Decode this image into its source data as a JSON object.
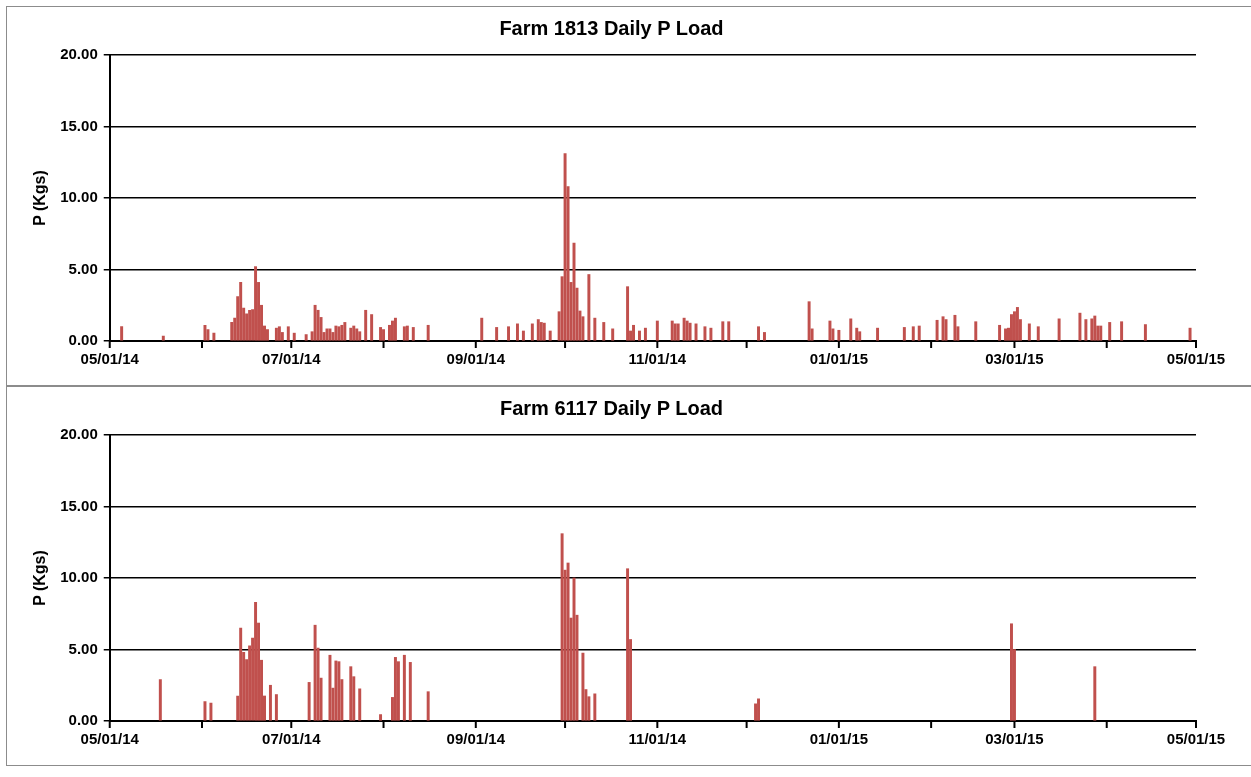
{
  "chart_data": [
    {
      "type": "bar",
      "title": "Farm 1813 Daily P Load",
      "ylabel": "P (Kgs)",
      "grid": "y",
      "xlim": [
        "2014-05-01",
        "2015-05-01"
      ],
      "xticks": [
        {
          "value": "2014-05-01",
          "label": "05/01/14"
        },
        {
          "value": "2014-06-01",
          "label": null
        },
        {
          "value": "2014-07-01",
          "label": "07/01/14"
        },
        {
          "value": "2014-08-01",
          "label": null
        },
        {
          "value": "2014-09-01",
          "label": "09/01/14"
        },
        {
          "value": "2014-10-01",
          "label": null
        },
        {
          "value": "2014-11-01",
          "label": "11/01/14"
        },
        {
          "value": "2014-12-01",
          "label": null
        },
        {
          "value": "2015-01-01",
          "label": "01/01/15"
        },
        {
          "value": "2015-02-01",
          "label": null
        },
        {
          "value": "2015-03-01",
          "label": "03/01/15"
        },
        {
          "value": "2015-04-01",
          "label": null
        },
        {
          "value": "2015-05-01",
          "label": "05/01/15"
        }
      ],
      "ylim": [
        0,
        20
      ],
      "yticks": [
        {
          "value": 0,
          "label": "0.00"
        },
        {
          "value": 5,
          "label": "5.00"
        },
        {
          "value": 10,
          "label": "10.00"
        },
        {
          "value": 15,
          "label": "15.00"
        },
        {
          "value": 20,
          "label": "20.00"
        }
      ],
      "series": [
        {
          "color": "#c0504d",
          "x": [
            "2014-05-05",
            "2014-05-19",
            "2014-06-02",
            "2014-06-03",
            "2014-06-05",
            "2014-06-11",
            "2014-06-12",
            "2014-06-13",
            "2014-06-14",
            "2014-06-15",
            "2014-06-16",
            "2014-06-17",
            "2014-06-18",
            "2014-06-19",
            "2014-06-20",
            "2014-06-21",
            "2014-06-22",
            "2014-06-23",
            "2014-06-26",
            "2014-06-27",
            "2014-06-28",
            "2014-06-30",
            "2014-07-02",
            "2014-07-06",
            "2014-07-08",
            "2014-07-09",
            "2014-07-10",
            "2014-07-11",
            "2014-07-12",
            "2014-07-13",
            "2014-07-14",
            "2014-07-15",
            "2014-07-16",
            "2014-07-17",
            "2014-07-18",
            "2014-07-19",
            "2014-07-21",
            "2014-07-22",
            "2014-07-23",
            "2014-07-24",
            "2014-07-26",
            "2014-07-28",
            "2014-07-31",
            "2014-08-01",
            "2014-08-03",
            "2014-08-04",
            "2014-08-05",
            "2014-08-08",
            "2014-08-09",
            "2014-08-11",
            "2014-08-16",
            "2014-09-03",
            "2014-09-08",
            "2014-09-12",
            "2014-09-15",
            "2014-09-17",
            "2014-09-20",
            "2014-09-22",
            "2014-09-23",
            "2014-09-24",
            "2014-09-26",
            "2014-09-29",
            "2014-09-30",
            "2014-10-01",
            "2014-10-02",
            "2014-10-03",
            "2014-10-04",
            "2014-10-05",
            "2014-10-06",
            "2014-10-07",
            "2014-10-09",
            "2014-10-11",
            "2014-10-14",
            "2014-10-17",
            "2014-10-22",
            "2014-10-23",
            "2014-10-24",
            "2014-10-26",
            "2014-10-28",
            "2014-11-01",
            "2014-11-06",
            "2014-11-07",
            "2014-11-08",
            "2014-11-10",
            "2014-11-11",
            "2014-11-12",
            "2014-11-14",
            "2014-11-17",
            "2014-11-19",
            "2014-11-23",
            "2014-11-25",
            "2014-12-05",
            "2014-12-07",
            "2014-12-22",
            "2014-12-23",
            "2014-12-29",
            "2014-12-30",
            "2015-01-01",
            "2015-01-05",
            "2015-01-07",
            "2015-01-08",
            "2015-01-14",
            "2015-01-23",
            "2015-01-26",
            "2015-01-28",
            "2015-02-03",
            "2015-02-05",
            "2015-02-06",
            "2015-02-09",
            "2015-02-10",
            "2015-02-16",
            "2015-02-24",
            "2015-02-26",
            "2015-02-27",
            "2015-02-28",
            "2015-03-01",
            "2015-03-02",
            "2015-03-03",
            "2015-03-06",
            "2015-03-09",
            "2015-03-16",
            "2015-03-23",
            "2015-03-25",
            "2015-03-27",
            "2015-03-28",
            "2015-03-29",
            "2015-03-30",
            "2015-04-02",
            "2015-04-06",
            "2015-04-14",
            "2015-04-29"
          ],
          "values": [
            1.0,
            0.35,
            1.1,
            0.8,
            0.55,
            1.3,
            1.6,
            3.1,
            4.1,
            2.3,
            1.9,
            2.15,
            2.2,
            5.2,
            4.1,
            2.5,
            1.05,
            0.8,
            0.9,
            1.0,
            0.6,
            1.0,
            0.55,
            0.45,
            0.65,
            2.5,
            2.15,
            1.65,
            0.6,
            0.85,
            0.85,
            0.6,
            1.05,
            1.0,
            1.1,
            1.3,
            0.9,
            1.05,
            0.85,
            0.65,
            2.15,
            1.85,
            0.95,
            0.8,
            1.1,
            1.4,
            1.6,
            1.0,
            1.05,
            0.95,
            1.1,
            1.6,
            0.95,
            1.0,
            1.2,
            0.7,
            1.2,
            1.5,
            1.3,
            1.25,
            0.7,
            2.05,
            4.5,
            13.1,
            10.8,
            4.1,
            6.85,
            3.7,
            2.1,
            1.7,
            4.65,
            1.6,
            1.3,
            0.85,
            3.8,
            0.7,
            1.1,
            0.7,
            0.9,
            1.4,
            1.4,
            1.2,
            1.2,
            1.6,
            1.4,
            1.25,
            1.2,
            1.0,
            0.9,
            1.35,
            1.35,
            1.0,
            0.6,
            2.75,
            0.85,
            1.4,
            0.85,
            0.75,
            1.55,
            0.9,
            0.65,
            0.9,
            0.95,
            1.0,
            1.05,
            1.45,
            1.7,
            1.5,
            1.8,
            1.0,
            1.35,
            1.1,
            0.85,
            0.9,
            1.85,
            2.05,
            2.35,
            1.5,
            1.2,
            1.0,
            1.55,
            1.95,
            1.5,
            1.55,
            1.75,
            1.05,
            1.05,
            1.3,
            1.35,
            1.15,
            0.9
          ]
        }
      ]
    },
    {
      "type": "bar",
      "title": "Farm 6117 Daily P Load",
      "ylabel": "P (Kgs)",
      "grid": "y",
      "xlim": [
        "2014-05-01",
        "2015-05-01"
      ],
      "xticks": [
        {
          "value": "2014-05-01",
          "label": "05/01/14"
        },
        {
          "value": "2014-06-01",
          "label": null
        },
        {
          "value": "2014-07-01",
          "label": "07/01/14"
        },
        {
          "value": "2014-08-01",
          "label": null
        },
        {
          "value": "2014-09-01",
          "label": "09/01/14"
        },
        {
          "value": "2014-10-01",
          "label": null
        },
        {
          "value": "2014-11-01",
          "label": "11/01/14"
        },
        {
          "value": "2014-12-01",
          "label": null
        },
        {
          "value": "2015-01-01",
          "label": "01/01/15"
        },
        {
          "value": "2015-02-01",
          "label": null
        },
        {
          "value": "2015-03-01",
          "label": "03/01/15"
        },
        {
          "value": "2015-04-01",
          "label": null
        },
        {
          "value": "2015-05-01",
          "label": "05/01/15"
        }
      ],
      "ylim": [
        0,
        20
      ],
      "yticks": [
        {
          "value": 0,
          "label": "0.00"
        },
        {
          "value": 5,
          "label": "5.00"
        },
        {
          "value": 10,
          "label": "10.00"
        },
        {
          "value": 15,
          "label": "15.00"
        },
        {
          "value": 20,
          "label": "20.00"
        }
      ],
      "series": [
        {
          "color": "#c0504d",
          "x": [
            "2014-05-18",
            "2014-06-02",
            "2014-06-04",
            "2014-06-13",
            "2014-06-14",
            "2014-06-15",
            "2014-06-16",
            "2014-06-17",
            "2014-06-18",
            "2014-06-19",
            "2014-06-20",
            "2014-06-21",
            "2014-06-22",
            "2014-06-24",
            "2014-06-26",
            "2014-07-07",
            "2014-07-09",
            "2014-07-10",
            "2014-07-11",
            "2014-07-14",
            "2014-07-15",
            "2014-07-16",
            "2014-07-17",
            "2014-07-18",
            "2014-07-21",
            "2014-07-22",
            "2014-07-24",
            "2014-07-31",
            "2014-08-04",
            "2014-08-05",
            "2014-08-06",
            "2014-08-08",
            "2014-08-10",
            "2014-08-16",
            "2014-09-30",
            "2014-10-01",
            "2014-10-02",
            "2014-10-03",
            "2014-10-04",
            "2014-10-05",
            "2014-10-07",
            "2014-10-08",
            "2014-10-09",
            "2014-10-11",
            "2014-10-22",
            "2014-10-23",
            "2014-12-04",
            "2014-12-05",
            "2015-02-28",
            "2015-03-01",
            "2015-03-28"
          ],
          "values": [
            2.9,
            1.35,
            1.25,
            1.75,
            6.5,
            4.8,
            4.3,
            5.25,
            5.8,
            8.3,
            6.85,
            4.25,
            1.75,
            2.5,
            1.85,
            2.7,
            6.7,
            5.1,
            3.0,
            4.6,
            2.3,
            4.2,
            4.15,
            2.9,
            3.8,
            3.1,
            2.25,
            0.45,
            1.65,
            4.45,
            4.15,
            4.6,
            4.1,
            2.05,
            13.1,
            10.55,
            11.05,
            7.2,
            10.0,
            7.4,
            4.75,
            2.2,
            1.7,
            1.9,
            10.65,
            5.7,
            1.2,
            1.55,
            6.8,
            5.0,
            3.8
          ]
        }
      ]
    }
  ]
}
